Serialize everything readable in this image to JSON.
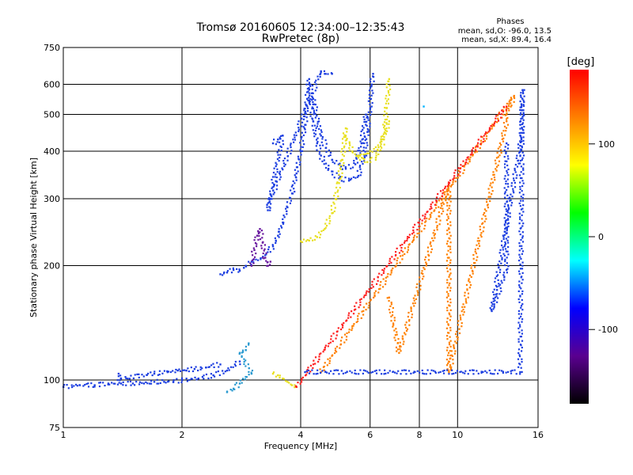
{
  "chart_data": {
    "type": "scatter",
    "title": "Tromsø 20160605 12:34:00–12:35:43",
    "subtitle": "RwPretec (8p)",
    "xlabel": "Frequency [MHz]",
    "ylabel": "Stationary phase Virtual Height [km]",
    "x_scale": "log",
    "y_scale": "log",
    "xlim": [
      1,
      16
    ],
    "ylim": [
      75,
      750
    ],
    "x_ticks": [
      1,
      2,
      4,
      6,
      8,
      10,
      16
    ],
    "y_ticks": [
      75,
      100,
      200,
      300,
      400,
      500,
      600,
      750
    ],
    "grid": true,
    "phases_header": "Phases",
    "phases_lines": [
      "mean, sd,O: -96.0, 13.5",
      "mean, sd,X:  89.4, 16.4"
    ],
    "colorbar": {
      "label": "[deg]",
      "range": [
        -180,
        180
      ],
      "ticks": [
        -100,
        0,
        100
      ],
      "colormap": [
        "#000000",
        "#5a0090",
        "#0000ff",
        "#00ffff",
        "#00ff00",
        "#ffff00",
        "#ff8000",
        "#ff0000"
      ]
    },
    "series": [
      {
        "color": "#1d3fe0",
        "points": [
          [
            1.0,
            96
          ],
          [
            1.1,
            97
          ],
          [
            1.2,
            97
          ],
          [
            1.3,
            98
          ],
          [
            1.4,
            98
          ],
          [
            1.5,
            98
          ],
          [
            1.6,
            98
          ],
          [
            1.7,
            99
          ],
          [
            1.8,
            99
          ],
          [
            1.9,
            99
          ],
          [
            2.0,
            100
          ],
          [
            2.2,
            101
          ],
          [
            2.4,
            103
          ],
          [
            2.6,
            106
          ],
          [
            2.8,
            112
          ]
        ]
      },
      {
        "color": "#1d3fe0",
        "points": [
          [
            1.38,
            104
          ],
          [
            1.39,
            100
          ],
          [
            1.4,
            101
          ],
          [
            1.7,
            104
          ],
          [
            1.95,
            106
          ],
          [
            2.05,
            106
          ],
          [
            2.15,
            107
          ],
          [
            2.3,
            108
          ],
          [
            2.5,
            110
          ]
        ]
      },
      {
        "color": "#1d3fe0",
        "points": [
          [
            2.5,
            190
          ],
          [
            2.6,
            192
          ],
          [
            2.7,
            195
          ],
          [
            2.8,
            194
          ],
          [
            2.9,
            200
          ],
          [
            3.0,
            205
          ],
          [
            3.2,
            210
          ],
          [
            3.4,
            225
          ],
          [
            3.5,
            240
          ],
          [
            3.6,
            260
          ],
          [
            3.7,
            285
          ],
          [
            3.8,
            310
          ],
          [
            3.9,
            350
          ],
          [
            4.0,
            400
          ],
          [
            4.1,
            470
          ],
          [
            4.15,
            550
          ],
          [
            4.2,
            620
          ]
        ]
      },
      {
        "color": "#1d3fe0",
        "points": [
          [
            4.2,
            600
          ],
          [
            4.3,
            480
          ],
          [
            4.4,
            420
          ],
          [
            4.5,
            390
          ],
          [
            4.7,
            360
          ],
          [
            5.0,
            340
          ],
          [
            5.3,
            335
          ],
          [
            5.6,
            345
          ],
          [
            5.8,
            390
          ],
          [
            5.9,
            450
          ],
          [
            6.0,
            520
          ],
          [
            6.05,
            600
          ],
          [
            6.1,
            640
          ]
        ]
      },
      {
        "color": "#1d3fe0",
        "points": [
          [
            4.3,
            550
          ],
          [
            4.5,
            440
          ],
          [
            4.8,
            380
          ],
          [
            5.2,
            360
          ],
          [
            5.5,
            370
          ],
          [
            5.7,
            420
          ],
          [
            5.85,
            500
          ]
        ]
      },
      {
        "color": "#1d3fe0",
        "points": [
          [
            3.4,
            420
          ],
          [
            3.5,
            430
          ],
          [
            3.6,
            440
          ],
          [
            3.3,
            280
          ],
          [
            3.35,
            300
          ],
          [
            4.5,
            650
          ],
          [
            4.6,
            640
          ],
          [
            4.8,
            640
          ]
        ]
      },
      {
        "color": "#6a1aa0",
        "points": [
          [
            3.0,
            200
          ],
          [
            3.05,
            220
          ],
          [
            3.1,
            240
          ],
          [
            3.15,
            250
          ],
          [
            3.2,
            230
          ],
          [
            3.25,
            210
          ],
          [
            3.3,
            200
          ],
          [
            3.35,
            205
          ]
        ]
      },
      {
        "color": "#e8e020",
        "points": [
          [
            4.0,
            232
          ],
          [
            4.2,
            233
          ],
          [
            4.4,
            238
          ],
          [
            4.6,
            250
          ],
          [
            4.8,
            275
          ],
          [
            4.9,
            300
          ],
          [
            5.0,
            330
          ],
          [
            5.1,
            380
          ],
          [
            5.2,
            460
          ]
        ]
      },
      {
        "color": "#e8e020",
        "points": [
          [
            5.2,
            440
          ],
          [
            5.4,
            400
          ],
          [
            5.6,
            385
          ],
          [
            5.9,
            375
          ],
          [
            6.2,
            385
          ],
          [
            6.5,
            430
          ],
          [
            6.6,
            520
          ],
          [
            6.7,
            620
          ]
        ]
      },
      {
        "color": "#e8e020",
        "points": [
          [
            5.6,
            390
          ],
          [
            5.9,
            395
          ],
          [
            6.3,
            410
          ],
          [
            6.7,
            480
          ]
        ]
      },
      {
        "color": "#e8e020",
        "points": [
          [
            3.4,
            104
          ],
          [
            3.5,
            103
          ],
          [
            3.6,
            101
          ],
          [
            3.7,
            99
          ],
          [
            3.8,
            97
          ],
          [
            3.9,
            96
          ]
        ]
      },
      {
        "color": "#2a9ad0",
        "points": [
          [
            2.6,
            93
          ],
          [
            2.7,
            95
          ],
          [
            2.8,
            98
          ],
          [
            2.9,
            102
          ],
          [
            3.0,
            104
          ],
          [
            2.8,
            118
          ],
          [
            2.9,
            120
          ],
          [
            2.95,
            125
          ]
        ]
      },
      {
        "color": "#00b4ff",
        "points": [
          [
            8.2,
            525
          ]
        ]
      },
      {
        "color": "#ff8000",
        "points": [
          [
            6.7,
            165
          ],
          [
            7.1,
            118
          ],
          [
            9.5,
            325
          ],
          [
            9.5,
            250
          ],
          [
            9.5,
            210
          ],
          [
            9.5,
            105
          ],
          [
            13.3,
            480
          ],
          [
            13.3,
            500
          ],
          [
            13.9,
            560
          ],
          [
            4.5,
            105
          ]
        ]
      },
      {
        "color": "#ff2020",
        "points": [
          [
            13.3,
            525
          ],
          [
            3.9,
            96
          ]
        ]
      },
      {
        "color": "#1d3fe0",
        "points": [
          [
            13.3,
            420
          ],
          [
            13.3,
            195
          ],
          [
            12.2,
            152
          ],
          [
            14.5,
            430
          ],
          [
            14.6,
            580
          ],
          [
            14.4,
            105
          ],
          [
            4.1,
            105
          ]
        ]
      }
    ]
  }
}
